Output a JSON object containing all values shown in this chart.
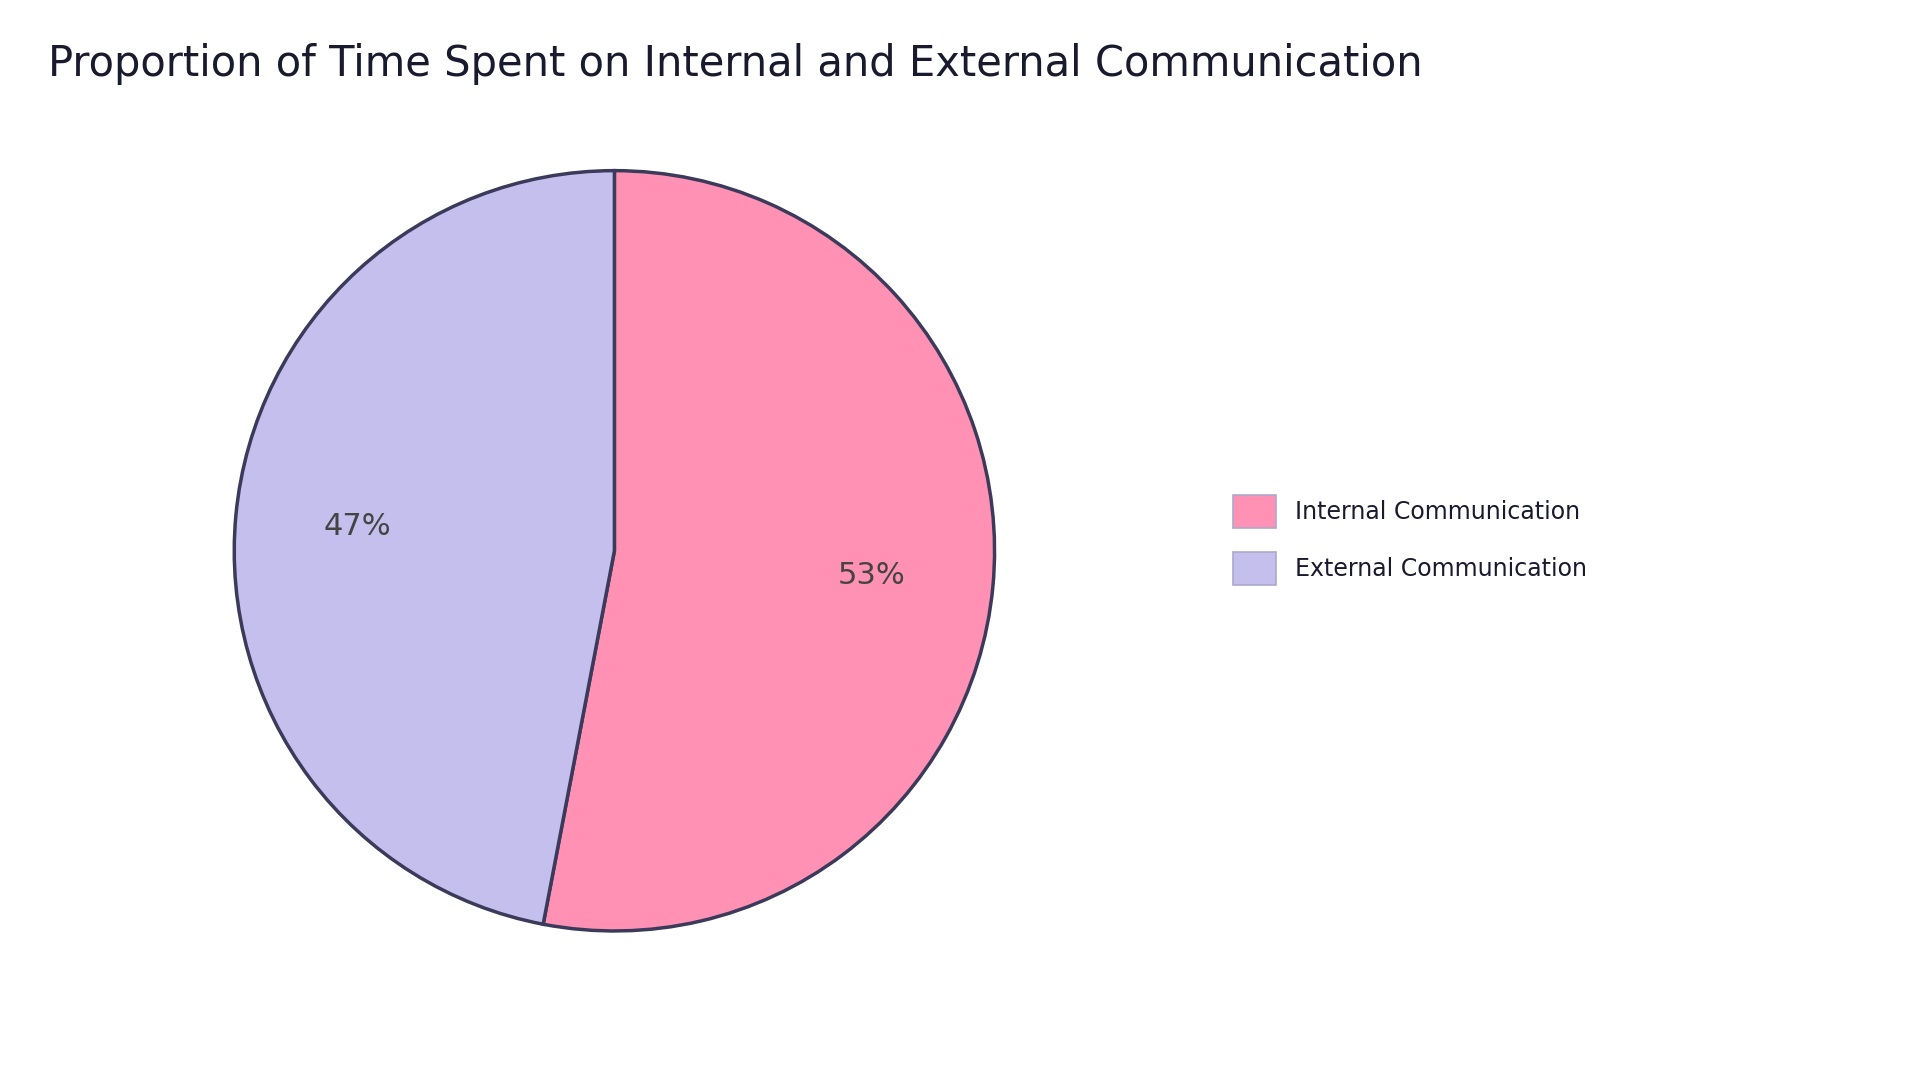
{
  "title": "Proportion of Time Spent on Internal and External Communication",
  "slices": [
    53,
    47
  ],
  "labels": [
    "Internal Communication",
    "External Communication"
  ],
  "colors": [
    "#FF91B4",
    "#C5BFEE"
  ],
  "edge_color": "#3B3A5A",
  "edge_width": 2.5,
  "background_color": "#FFFFFF",
  "title_fontsize": 30,
  "title_color": "#1a1a2e",
  "legend_fontsize": 17,
  "autopct_fontsize": 22,
  "startangle": 90,
  "pct_distance": 0.68
}
